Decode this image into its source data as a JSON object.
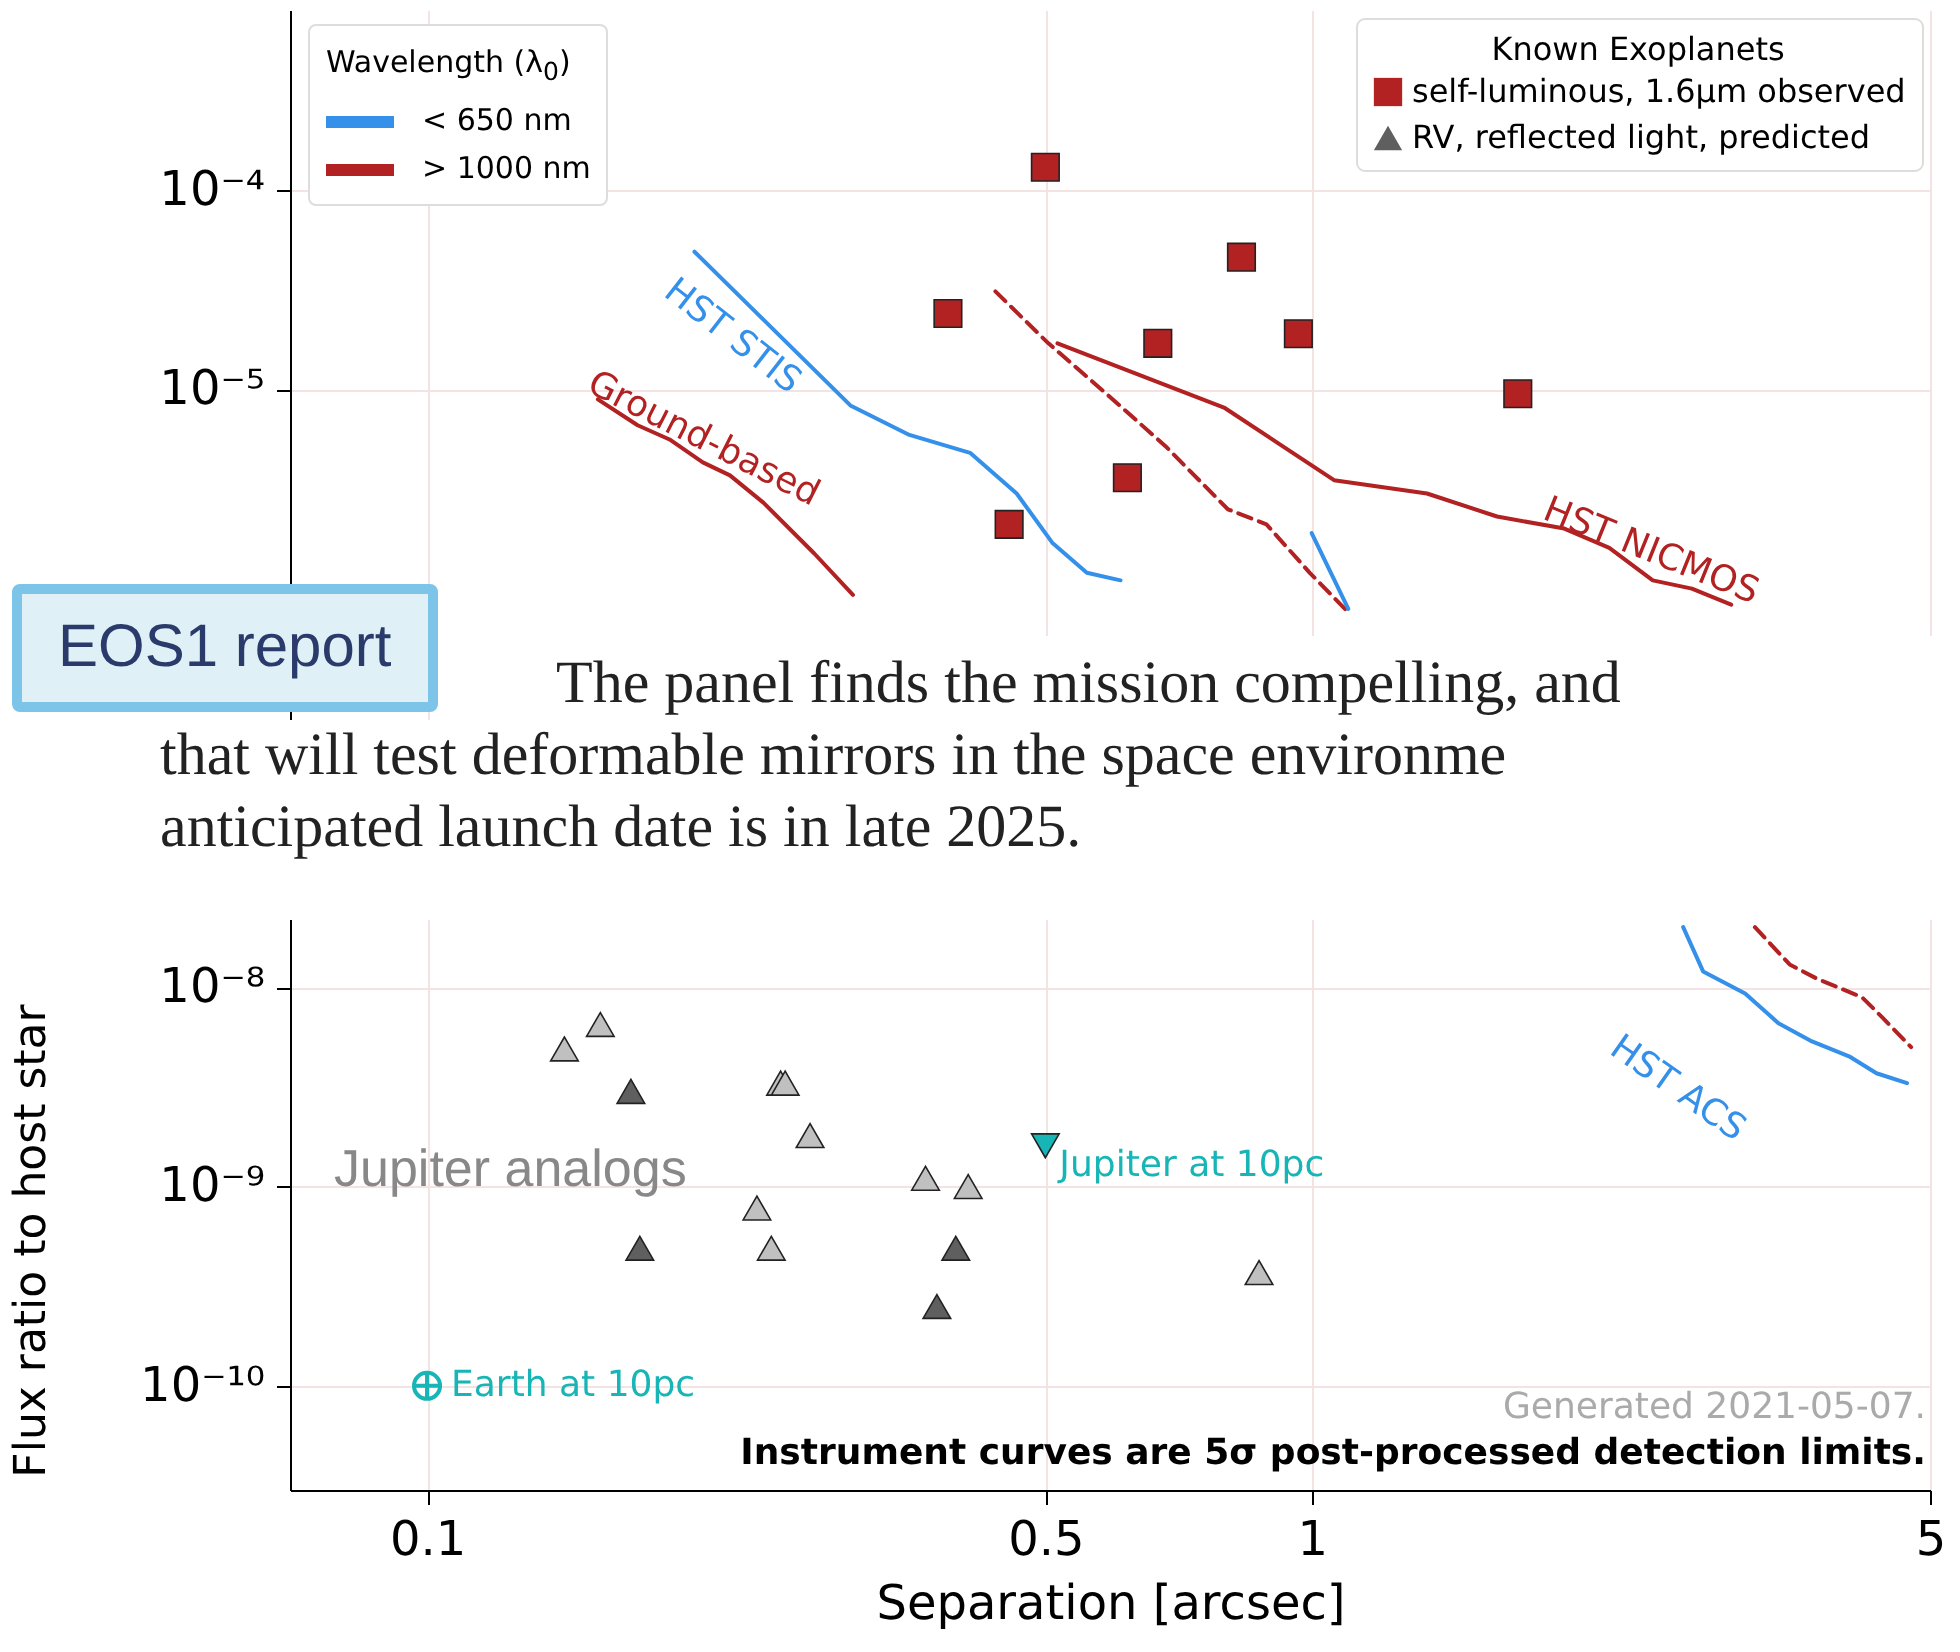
{
  "chart_data": {
    "type": "scatter",
    "xlabel": "Separation [arcsec]",
    "ylabel": "Flux ratio to host star",
    "legend_title": "Known Exoplanets",
    "legend": "top right",
    "grid": true,
    "log": "xy",
    "xlim": [
      0.07,
      5
    ],
    "xticks": [
      0.1,
      0.5,
      1,
      5
    ],
    "ylim": [
      3e-11,
      0.0008
    ],
    "yticks": [
      {
        "value": 1e-10,
        "label": "10⁻¹⁰"
      },
      {
        "value": 1e-09,
        "label": "10⁻⁹"
      },
      {
        "value": 1e-08,
        "label": "10⁻⁸"
      },
      {
        "value": 1e-05,
        "label": "10⁻⁵"
      },
      {
        "value": 0.0001,
        "label": "10⁻⁴"
      }
    ],
    "series": [
      {
        "name": "HST STIS",
        "type": "line",
        "color": "#3590ea",
        "line_style": "solid",
        "x": [
          0.2006,
          0.301,
          0.351,
          0.411,
          0.464,
          0.509,
          0.557,
          0.608
        ],
        "values": [
          4.9e-05,
          8.3e-06,
          5.9e-06,
          4.8e-06,
          3e-06,
          1.7e-06,
          1.2e-06,
          1.1e-06
        ]
      },
      {
        "name": "Ground-based",
        "type": "line",
        "color": "#b22222",
        "line_style": "solid",
        "x": [
          0.156,
          0.173,
          0.188,
          0.205,
          0.22,
          0.24,
          0.274,
          0.303
        ],
        "values": [
          8.9e-06,
          6.6e-06,
          5.6e-06,
          4.3e-06,
          3.7e-06,
          2.7e-06,
          1.5e-06,
          9.3e-07
        ]
      },
      {
        "name": "HST NICMOS",
        "type": "line",
        "color": "#b22222",
        "line_style": "solid",
        "x": [
          0.516,
          0.796,
          1.06,
          1.35,
          1.62,
          1.93,
          2.17,
          2.43,
          2.69,
          2.98
        ],
        "values": [
          1.7e-05,
          8.1e-06,
          3.5e-06,
          3e-06,
          2.3e-06,
          2e-06,
          1.6e-06,
          1.1e-06,
          1e-06,
          8.3e-07
        ]
      },
      {
        "type": "line",
        "color": "#b22222",
        "line_style": "dashed",
        "x": [
          0.439,
          0.504,
          0.586,
          0.683,
          0.804,
          0.889,
          0.995,
          1.1
        ],
        "values": [
          3.1e-05,
          1.7e-05,
          9.5e-06,
          5.2e-06,
          2.5e-06,
          2.1e-06,
          1.2e-06,
          7.6e-07
        ]
      },
      {
        "type": "line",
        "color": "#3590ea",
        "line_style": "solid",
        "x": [
          1.0,
          1.1
        ],
        "values": [
          1.9e-06,
          7.9e-07
        ]
      },
      {
        "name": "HST ACS",
        "type": "line",
        "color": "#3590ea",
        "line_style": "solid",
        "x": [
          2.63,
          2.77,
          3.09,
          3.37,
          3.66,
          4.05,
          4.35,
          4.71
        ],
        "values": [
          2e-08,
          1.2e-08,
          9.3e-09,
          6.6e-09,
          5.4e-09,
          4.5e-09,
          3.7e-09,
          3.3e-09
        ]
      },
      {
        "type": "line",
        "color": "#b22222",
        "line_style": "dashed",
        "x": [
          3.17,
          3.47,
          3.73,
          4.19,
          4.41,
          4.76
        ],
        "values": [
          2e-08,
          1.3e-08,
          1.1e-08,
          8.9e-09,
          7.1e-09,
          5e-09
        ]
      },
      {
        "name": "self-luminous, 1.6µm observed",
        "color": "#b22222",
        "marker": "square",
        "x": [
          0.388,
          0.455,
          0.5,
          0.619,
          0.67,
          0.833,
          0.966,
          1.71
        ],
        "values": [
          2.4e-05,
          2.1e-06,
          0.00013,
          3.6e-06,
          1.7e-05,
          4.6e-05,
          1.9e-05,
          9.5e-06
        ]
      },
      {
        "name": "RV, reflected light, predicted",
        "color": "#5f5f5f",
        "marker": "triangle",
        "x": [
          0.17,
          0.174,
          0.377,
          0.396
        ],
        "values": [
          3e-09,
          4.9e-10,
          2.5e-10,
          4.9e-10
        ]
      },
      {
        "color": "#c0c0c0",
        "marker": "triangle",
        "x": [
          0.143,
          0.157,
          0.236,
          0.245,
          0.251,
          0.254,
          0.271,
          0.366,
          0.409,
          0.872
        ],
        "values": [
          4.9e-09,
          6.5e-09,
          7.8e-10,
          4.9e-10,
          3.3e-09,
          3.3e-09,
          1.8e-09,
          1.1e-09,
          1e-09,
          3.7e-10
        ]
      },
      {
        "name": "Jupiter at 10pc",
        "color": "#17b5b5",
        "marker": "triangle-down",
        "x": [
          0.5
        ],
        "values": [
          1.6e-09
        ]
      },
      {
        "name": "Earth at 10pc",
        "color": "#17b5b5",
        "marker": "cross",
        "x": [
          0.1
        ],
        "values": [
          1e-10
        ]
      }
    ],
    "annotations": [
      "Jupiter analogs",
      "Generated 2021-05-07.",
      "Instrument curves are 5σ post-processed detection limits.",
      "EOS1 report",
      "The panel finds the mission compelling, and",
      "that will test deformable mirrors in the space environme",
      "anticipated launch date is in late 2025.",
      "Wavelength (λ$_{0}$)",
      "< 650 nm",
      "> 1000 nm"
    ]
  }
}
